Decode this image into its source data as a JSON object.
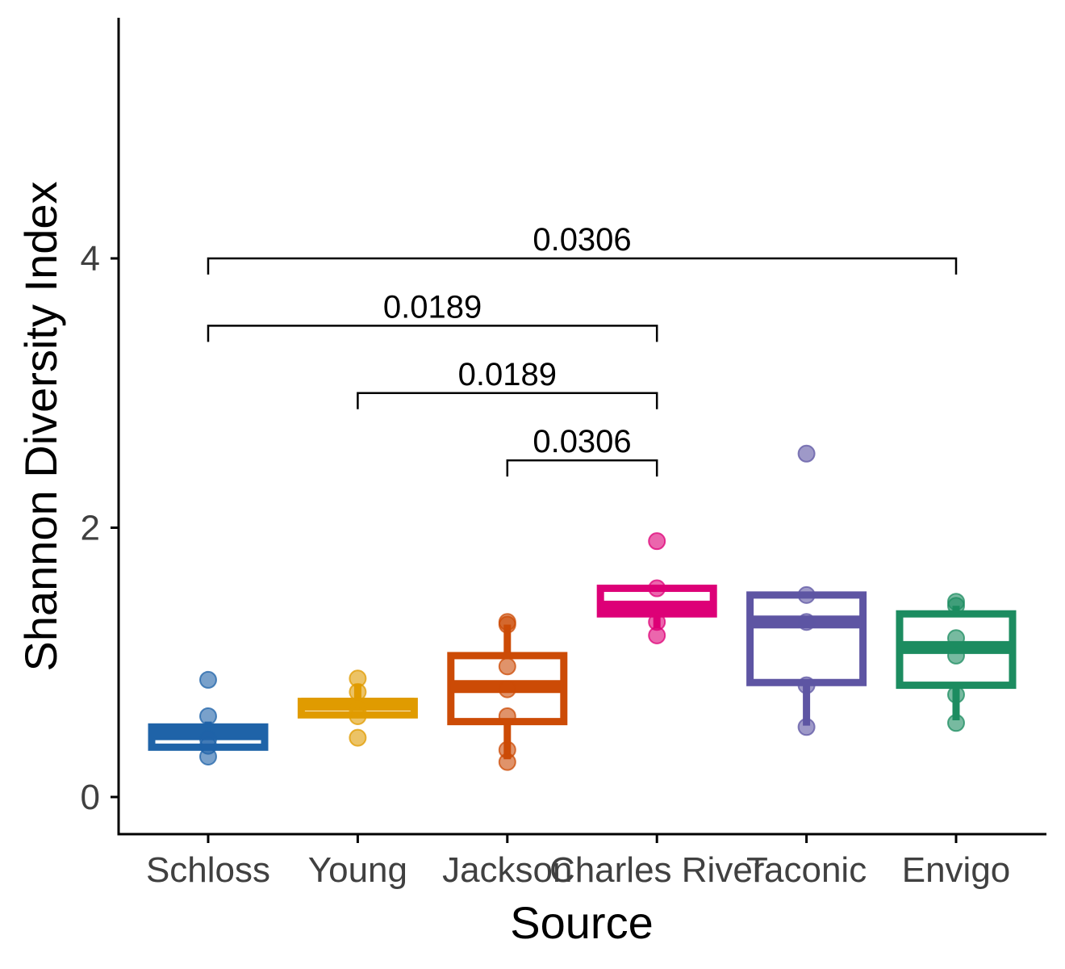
{
  "chart_data": {
    "type": "box",
    "title": "",
    "xlabel": "Source",
    "ylabel": "Shannon Diversity Index",
    "ylim": [
      -0.28,
      5.8
    ],
    "yticks": [
      0,
      2,
      4
    ],
    "grid": false,
    "legend": "none",
    "categories": [
      "Schloss",
      "Young",
      "Jackson",
      "Charles River",
      "Taconic",
      "Envigo"
    ],
    "series": [
      {
        "color": "#1f63a8",
        "box": {
          "whisker_low": 0.36,
          "q1": 0.37,
          "median": 0.47,
          "q3": 0.52,
          "whisker_high": 0.56
        },
        "points": [
          0.87,
          0.6,
          0.43,
          0.38,
          0.3
        ]
      },
      {
        "color": "#e09b00",
        "box": {
          "whisker_low": 0.61,
          "q1": 0.61,
          "median": 0.69,
          "q3": 0.71,
          "whisker_high": 0.84
        },
        "points": [
          0.88,
          0.78,
          0.65,
          0.6,
          0.44
        ]
      },
      {
        "color": "#cc4b06",
        "box": {
          "whisker_low": 0.28,
          "q1": 0.56,
          "median": 0.82,
          "q3": 1.05,
          "whisker_high": 1.28
        },
        "points": [
          1.3,
          1.28,
          0.97,
          0.8,
          0.6,
          0.35,
          0.26
        ]
      },
      {
        "color": "#dd0077",
        "box": {
          "whisker_low": 1.25,
          "q1": 1.36,
          "median": 1.41,
          "q3": 1.55,
          "whisker_high": 1.55
        },
        "points": [
          1.9,
          1.55,
          1.3,
          1.2
        ]
      },
      {
        "color": "#5e55a3",
        "box": {
          "whisker_low": 0.53,
          "q1": 0.85,
          "median": 1.3,
          "q3": 1.5,
          "whisker_high": 1.5
        },
        "points": [
          2.55,
          1.5,
          1.3,
          0.83,
          0.52
        ]
      },
      {
        "color": "#1c8c60",
        "box": {
          "whisker_low": 0.57,
          "q1": 0.83,
          "median": 1.11,
          "q3": 1.36,
          "whisker_high": 1.42
        },
        "points": [
          1.45,
          1.42,
          1.18,
          1.05,
          0.76,
          0.55
        ]
      }
    ],
    "comparisons": [
      {
        "from": "Jackson",
        "to": "Charles River",
        "y": 2.5,
        "label": "0.0306"
      },
      {
        "from": "Young",
        "to": "Charles River",
        "y": 3.0,
        "label": "0.0189"
      },
      {
        "from": "Schloss",
        "to": "Charles River",
        "y": 3.5,
        "label": "0.0189"
      },
      {
        "from": "Schloss",
        "to": "Envigo",
        "y": 4.0,
        "label": "0.0306"
      }
    ]
  }
}
